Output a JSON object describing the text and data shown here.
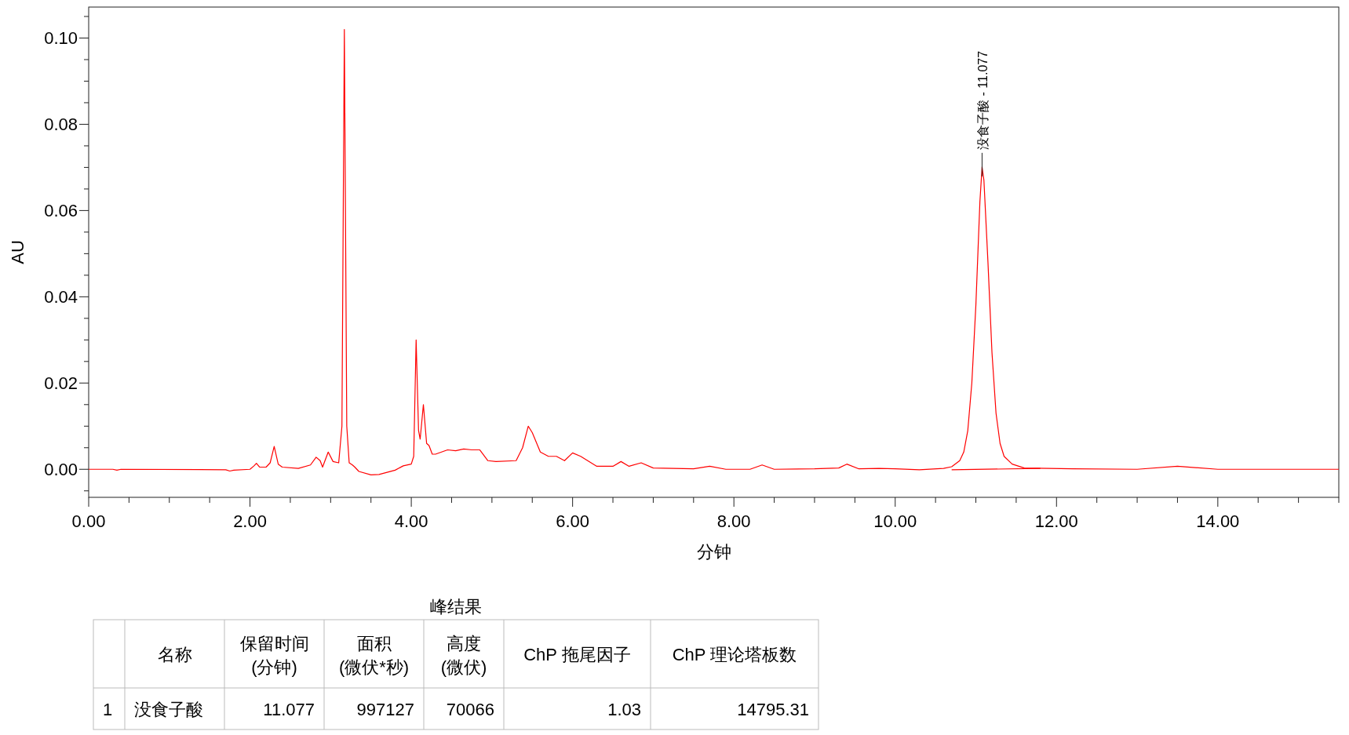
{
  "chart_data": {
    "type": "line",
    "xlabel": "分钟",
    "ylabel": "AU",
    "xlim": [
      0,
      15.5
    ],
    "ylim": [
      -0.0065,
      0.107
    ],
    "xticks": [
      {
        "value": 0,
        "label": "0.00"
      },
      {
        "value": 0.5,
        "label": null
      },
      {
        "value": 1,
        "label": null
      },
      {
        "value": 1.5,
        "label": null
      },
      {
        "value": 2,
        "label": "2.00"
      },
      {
        "value": 2.5,
        "label": null
      },
      {
        "value": 3,
        "label": null
      },
      {
        "value": 3.5,
        "label": null
      },
      {
        "value": 4,
        "label": "4.00"
      },
      {
        "value": 4.5,
        "label": null
      },
      {
        "value": 5,
        "label": null
      },
      {
        "value": 5.5,
        "label": null
      },
      {
        "value": 6,
        "label": "6.00"
      },
      {
        "value": 6.5,
        "label": null
      },
      {
        "value": 7,
        "label": null
      },
      {
        "value": 7.5,
        "label": null
      },
      {
        "value": 8,
        "label": "8.00"
      },
      {
        "value": 8.5,
        "label": null
      },
      {
        "value": 9,
        "label": null
      },
      {
        "value": 9.5,
        "label": null
      },
      {
        "value": 10,
        "label": "10.00"
      },
      {
        "value": 10.5,
        "label": null
      },
      {
        "value": 11,
        "label": null
      },
      {
        "value": 11.5,
        "label": null
      },
      {
        "value": 12,
        "label": "12.00"
      },
      {
        "value": 12.5,
        "label": null
      },
      {
        "value": 13,
        "label": null
      },
      {
        "value": 13.5,
        "label": null
      },
      {
        "value": 14,
        "label": "14.00"
      },
      {
        "value": 14.5,
        "label": null
      },
      {
        "value": 15,
        "label": null
      },
      {
        "value": 15.5,
        "label": null
      }
    ],
    "yticks": [
      {
        "value": -0.005,
        "label": null
      },
      {
        "value": 0,
        "label": "0.00"
      },
      {
        "value": 0.005,
        "label": null
      },
      {
        "value": 0.01,
        "label": null
      },
      {
        "value": 0.015,
        "label": null
      },
      {
        "value": 0.02,
        "label": "0.02"
      },
      {
        "value": 0.025,
        "label": null
      },
      {
        "value": 0.03,
        "label": null
      },
      {
        "value": 0.035,
        "label": null
      },
      {
        "value": 0.04,
        "label": "0.04"
      },
      {
        "value": 0.045,
        "label": null
      },
      {
        "value": 0.05,
        "label": null
      },
      {
        "value": 0.055,
        "label": null
      },
      {
        "value": 0.06,
        "label": "0.06"
      },
      {
        "value": 0.065,
        "label": null
      },
      {
        "value": 0.07,
        "label": null
      },
      {
        "value": 0.075,
        "label": null
      },
      {
        "value": 0.08,
        "label": "0.08"
      },
      {
        "value": 0.085,
        "label": null
      },
      {
        "value": 0.09,
        "label": null
      },
      {
        "value": 0.095,
        "label": null
      },
      {
        "value": 0.1,
        "label": "0.10"
      },
      {
        "value": 0.105,
        "label": null
      }
    ],
    "grid": false,
    "series": [
      {
        "color": "#ff0000",
        "x": [
          0,
          0.3,
          0.35,
          0.4,
          1.7,
          1.75,
          1.8,
          2.0,
          2.05,
          2.08,
          2.12,
          2.2,
          2.25,
          2.3,
          2.35,
          2.4,
          2.6,
          2.75,
          2.82,
          2.87,
          2.9,
          2.97,
          3.03,
          3.1,
          3.14,
          3.17,
          3.2,
          3.23,
          3.27,
          3.3,
          3.35,
          3.5,
          3.6,
          3.8,
          3.9,
          4.0,
          4.03,
          4.06,
          4.09,
          4.11,
          4.15,
          4.19,
          4.22,
          4.26,
          4.3,
          4.45,
          4.55,
          4.65,
          4.75,
          4.85,
          4.95,
          5.05,
          5.3,
          5.38,
          5.45,
          5.5,
          5.6,
          5.7,
          5.8,
          5.9,
          6.0,
          6.1,
          6.3,
          6.5,
          6.6,
          6.7,
          6.85,
          7.0,
          7.5,
          7.7,
          7.9,
          8.2,
          8.35,
          8.5,
          9.0,
          9.3,
          9.4,
          9.55,
          9.8,
          10.0,
          10.3,
          10.6,
          10.7,
          10.8,
          10.85,
          10.9,
          10.95,
          11.0,
          11.05,
          11.077,
          11.1,
          11.15,
          11.2,
          11.25,
          11.3,
          11.35,
          11.45,
          11.6,
          11.9,
          12.2,
          13.0,
          13.5,
          14.0,
          15.5
        ],
        "values": [
          0,
          0,
          -0.0002,
          0,
          -0.0001,
          -0.0004,
          -0.0002,
          0,
          0.0008,
          0.0014,
          0.0005,
          0.0005,
          0.0015,
          0.0053,
          0.0012,
          0.0005,
          0.0002,
          0.001,
          0.0028,
          0.002,
          0.0005,
          0.004,
          0.0018,
          0.0015,
          0.01,
          0.102,
          0.01,
          0.0015,
          0.001,
          0.0005,
          -0.0005,
          -0.0013,
          -0.0012,
          -0.0002,
          0.0008,
          0.0012,
          0.003,
          0.03,
          0.009,
          0.007,
          0.015,
          0.006,
          0.0055,
          0.0035,
          0.0035,
          0.0045,
          0.0043,
          0.0047,
          0.0045,
          0.0045,
          0.002,
          0.0018,
          0.002,
          0.005,
          0.01,
          0.0085,
          0.004,
          0.003,
          0.003,
          0.002,
          0.0038,
          0.003,
          0.0007,
          0.0007,
          0.0018,
          0.0007,
          0.0015,
          0.0003,
          0.0001,
          0.0007,
          0,
          0,
          0.001,
          0,
          0.0001,
          0.0003,
          0.0012,
          0.0001,
          0.0002,
          0.0001,
          -0.0001,
          0.0002,
          0.0006,
          0.002,
          0.004,
          0.009,
          0.02,
          0.038,
          0.062,
          0.0701,
          0.067,
          0.048,
          0.027,
          0.013,
          0.006,
          0.003,
          0.0012,
          0.0003,
          0.0002,
          0.0001,
          0,
          0.0007,
          0,
          0
        ]
      },
      {
        "color": "#ff0000",
        "x": [
          10.7,
          11.8
        ],
        "values": [
          -0.0001,
          0.0002
        ]
      }
    ],
    "annotations": [
      {
        "text": "没食子酸 - 11.077",
        "x": 11.077,
        "y": 0.0701
      },
      "峰结果",
      "名称",
      "保留时间\n(分钟)",
      "面积\n(微伏*秒)",
      "高度\n(微伏)",
      "ChP 拖尾因子",
      "ChP 理论塔板数",
      "1",
      "没食子酸",
      "11.077",
      "997127",
      "70066",
      "1.03",
      "14795.31"
    ]
  }
}
